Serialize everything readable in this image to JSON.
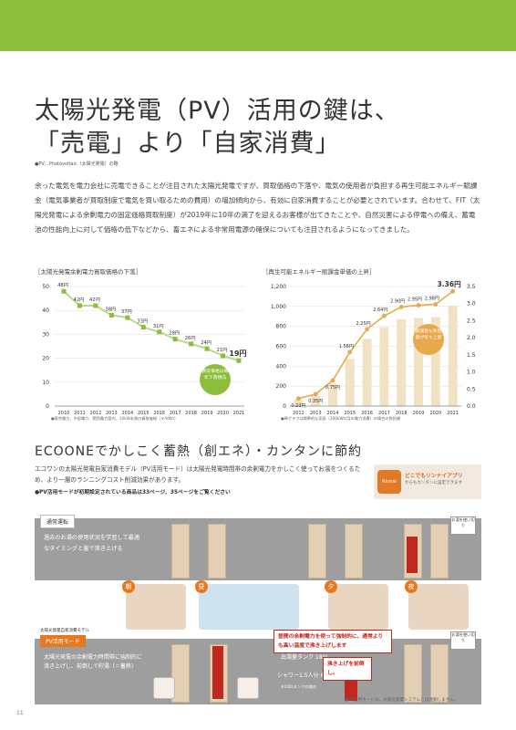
{
  "heading": {
    "line1": "太陽光発電（PV）活用の鍵は、",
    "line2": "「売電」より「自家消費」",
    "note": "●PV…Photovoltaic（太陽光発電）の略"
  },
  "body_text": "余った電気を電力会社に売電できることが注目された太陽光発電ですが、買取価格の下落や、電気の使用者が負担する再生可能エネルギー賦課金（電気事業者が買取制度で電気を買い取るための費用）の増加傾向から、有効に自家消費することが必要とされています。合わせて、FIT（太陽光発電による余剰電力の固定価格買取制度）が2019年に10年の満了を迎えるお客様が出てきたことや、自然災害による停電への備え、蓄電池の性能向上に対して価格の低下などから、畜エネによる非常用電源の確保についても注目されるようになってきました。",
  "chart_data": [
    {
      "type": "line",
      "title": "［太陽光発電余剰電力買取価格の下落］",
      "x": [
        "2010",
        "2011",
        "2012",
        "2013",
        "2014",
        "2015",
        "2016",
        "2017",
        "2018",
        "2019",
        "2020",
        "2021"
      ],
      "data_labels": [
        "48円",
        "42円",
        "42円",
        "38円",
        "37円",
        "33円",
        "31円",
        "28円",
        "26円",
        "24円",
        "21円",
        "19円"
      ],
      "values": [
        48,
        42,
        42,
        38,
        37,
        33,
        31,
        28,
        26,
        24,
        21,
        19
      ],
      "yticks": [
        "0",
        "10",
        "20",
        "30",
        "40",
        "50"
      ],
      "ylim": [
        0,
        50
      ],
      "callout": "買取価格は毎年下落傾向",
      "footnote": "●東京電力、中部電力、関西電力管内、10kW未満の買取価格（￥/kWh）"
    },
    {
      "type": "bar+line",
      "title": "［再生可能エネルギー賦課金単価の上昇］",
      "x": [
        "2012",
        "2013",
        "2014",
        "2015",
        "2016",
        "2017",
        "2018",
        "2019",
        "2020",
        "2021"
      ],
      "data_labels": [
        "0.22円",
        "0.35円",
        "0.75円",
        "1.58円",
        "2.25円",
        "2.64円",
        "2.90円",
        "2.95円",
        "2.98円",
        "3.36円"
      ],
      "values": [
        0.22,
        0.35,
        0.75,
        1.58,
        2.25,
        2.64,
        2.9,
        2.95,
        2.98,
        3.36
      ],
      "bar_values": [
        66,
        105,
        225,
        474,
        675,
        792,
        870,
        885,
        894,
        1008
      ],
      "yticks_left": [
        "0",
        "200",
        "400",
        "600",
        "800",
        "1,000",
        "1,200"
      ],
      "yticks_right": [
        "0.0",
        "0.5",
        "1.0",
        "1.5",
        "2.0",
        "2.5",
        "3.0",
        "3.5"
      ],
      "ylim_left": [
        0,
        1200
      ],
      "ylim_right": [
        0,
        3.5
      ],
      "callout": "賦課金も負担額が年々上昇",
      "footnote": "●棒グラフは標準的な家庭（300kWh/月の電力消費）の場合の負担額"
    }
  ],
  "section2": {
    "title": "ECOONEでかしこく蓄熱（創エネ）・カンタンに節約",
    "desc": "エコワンの太陽光発電自家消費モデル（PV活用モード）は太陽光発電時間帯の余剰電力をかしこく使ってお湯をつくるため、より一層のランニングコスト削減効果があります。",
    "ref": "●PV活用モードが初期設定されている商品は33ページ、35ページをご覧ください",
    "app": {
      "icon": "Rinnai",
      "title": "どこでもリンナイアプリ",
      "sub": "からもカンタンに設定できます"
    }
  },
  "diagram": {
    "mode1_tag": "通常運転",
    "mode1_text": "過去のお湯の使用状況を学習して最適なタイミングと量で沸き上げる",
    "mode2_small": "太陽光発電自家消費モデル",
    "mode2_tag": "PV活用モード",
    "mode2_text": "太陽光発電の余剰電力時間帯に強制的に沸き上げし、前倒しで貯湯（＝蓄熱）",
    "scenes": [
      "朝",
      "昼",
      "夕",
      "夜"
    ],
    "red_note": "昼間の余剰電力を使って強制的に、通常よりも高い温度で沸き上げします",
    "tank_label": "沸き上げを前倒し。",
    "tank_volume": "出湯量タンク 180L",
    "shower": "シャワー1.5人分 60L",
    "shower_sub": "※100Lタンクの場合",
    "bubble1": "お湯を使い切り",
    "bubble2": "お湯を使い切り"
  },
  "footer": {
    "page": "11",
    "pv_note": "●PV活用モードは、太陽光発電システムとは連動しません。"
  }
}
